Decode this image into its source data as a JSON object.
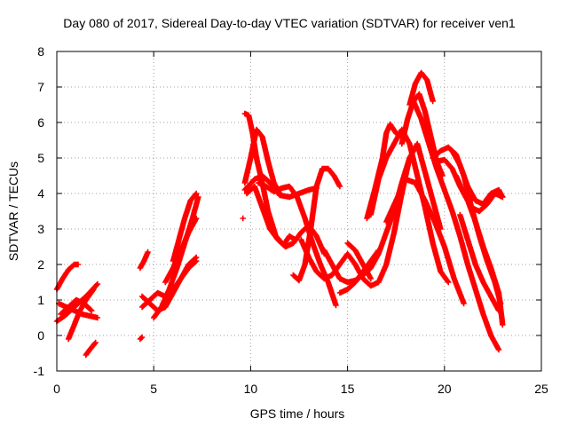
{
  "chart_data": {
    "type": "scatter",
    "title": "Day 080 of 2017, Sidereal Day-to-day VTEC variation (SDTVAR) for receiver ven1",
    "xlabel": "GPS time / hours",
    "ylabel": "SDTVAR / TECUs",
    "xlim": [
      0,
      25
    ],
    "ylim": [
      -1,
      8
    ],
    "x_ticks": [
      "0",
      "5",
      "10",
      "15",
      "20",
      "25"
    ],
    "y_ticks": [
      "-1",
      "0",
      "1",
      "2",
      "3",
      "4",
      "5",
      "6",
      "7",
      "8"
    ],
    "grid": true,
    "marker": "+",
    "series_color": "#ff0000",
    "tracks": [
      {
        "x": [
          0.0,
          0.3,
          0.6,
          0.9,
          1.1
        ],
        "y": [
          1.3,
          1.6,
          1.85,
          2.0,
          2.0
        ]
      },
      {
        "x": [
          0.0,
          0.4,
          0.8,
          1.2,
          1.6,
          2.1
        ],
        "y": [
          0.4,
          0.55,
          0.75,
          0.95,
          1.15,
          1.45
        ]
      },
      {
        "x": [
          0.1,
          0.5,
          0.9,
          1.3,
          1.7,
          2.1
        ],
        "y": [
          0.9,
          0.8,
          0.7,
          0.6,
          0.55,
          0.5
        ]
      },
      {
        "x": [
          0.6,
          0.9,
          1.2,
          1.5,
          1.9
        ],
        "y": [
          -0.1,
          0.3,
          0.7,
          1.0,
          1.3
        ]
      },
      {
        "x": [
          0.2,
          0.6,
          1.0,
          1.4,
          1.8
        ],
        "y": [
          0.6,
          0.8,
          1.0,
          0.9,
          0.7
        ]
      },
      {
        "x": [
          1.5,
          1.7,
          2.0
        ],
        "y": [
          -0.55,
          -0.4,
          -0.2
        ]
      },
      {
        "x": [
          4.3,
          4.5,
          4.7
        ],
        "y": [
          1.9,
          2.1,
          2.35
        ]
      },
      {
        "x": [
          4.3,
          4.4
        ],
        "y": [
          -0.1,
          -0.05
        ]
      },
      {
        "x": [
          4.4,
          4.8,
          5.2,
          5.6,
          6.0,
          6.4,
          6.8,
          7.2
        ],
        "y": [
          1.1,
          0.9,
          0.7,
          0.8,
          1.2,
          1.6,
          2.0,
          2.2
        ]
      },
      {
        "x": [
          4.4,
          4.8,
          5.2,
          5.6,
          6.0,
          6.4,
          6.8,
          7.2
        ],
        "y": [
          0.8,
          1.0,
          1.2,
          1.1,
          1.3,
          1.6,
          1.9,
          2.1
        ]
      },
      {
        "x": [
          5.0,
          5.4,
          5.8,
          6.2,
          6.6,
          7.0,
          7.3
        ],
        "y": [
          0.5,
          0.8,
          1.3,
          1.9,
          2.6,
          3.3,
          3.9
        ]
      },
      {
        "x": [
          6.0,
          6.3,
          6.6,
          6.9,
          7.2
        ],
        "y": [
          2.1,
          2.7,
          3.3,
          3.8,
          4.0
        ]
      },
      {
        "x": [
          5.6,
          6.0,
          6.4,
          6.8,
          7.2
        ],
        "y": [
          1.5,
          1.9,
          2.4,
          2.9,
          3.3
        ]
      },
      {
        "x": [
          9.6
        ],
        "y": [
          3.3
        ]
      },
      {
        "x": [
          9.7,
          9.9,
          10.1,
          10.3,
          10.6,
          10.9,
          11.3,
          11.7,
          12.0,
          12.3
        ],
        "y": [
          6.25,
          6.2,
          5.7,
          5.0,
          4.3,
          3.5,
          2.8,
          2.55,
          2.8,
          2.7
        ]
      },
      {
        "x": [
          9.7,
          10.0,
          10.3,
          10.6,
          10.9,
          11.2,
          11.5
        ],
        "y": [
          4.3,
          5.0,
          5.8,
          5.6,
          4.9,
          4.3,
          4.0
        ]
      },
      {
        "x": [
          9.7,
          10.2,
          10.6,
          11.0,
          11.5,
          12.0,
          12.5,
          13.0,
          13.4
        ],
        "y": [
          4.1,
          4.4,
          4.5,
          4.3,
          3.95,
          3.9,
          4.0,
          4.1,
          4.15
        ]
      },
      {
        "x": [
          9.8,
          10.2,
          10.6,
          11.0,
          11.4,
          11.8,
          12.2,
          12.6,
          13.0,
          13.4,
          13.8
        ],
        "y": [
          4.0,
          4.2,
          3.6,
          3.0,
          2.7,
          2.5,
          2.6,
          2.9,
          3.1,
          2.8,
          2.3
        ]
      },
      {
        "x": [
          10.4,
          10.8,
          11.2,
          11.6,
          12.0,
          12.4,
          12.8,
          13.2,
          13.6,
          14.0,
          14.4
        ],
        "y": [
          4.3,
          4.2,
          4.05,
          4.15,
          4.2,
          3.9,
          3.3,
          2.6,
          2.0,
          1.5,
          0.85
        ]
      },
      {
        "x": [
          12.2,
          12.5,
          12.8,
          13.1,
          13.4,
          13.7,
          14.0,
          14.3,
          14.6
        ],
        "y": [
          1.7,
          1.55,
          2.0,
          3.0,
          4.2,
          4.7,
          4.7,
          4.5,
          4.2
        ]
      },
      {
        "x": [
          12.6,
          13.0,
          13.4,
          13.8,
          14.2,
          14.6,
          15.0,
          15.4,
          15.8,
          16.2,
          16.6,
          17.0,
          17.4,
          17.8,
          18.2
        ],
        "y": [
          2.7,
          2.2,
          1.8,
          1.6,
          1.7,
          2.0,
          2.3,
          2.0,
          1.6,
          1.4,
          1.5,
          2.0,
          2.9,
          4.0,
          5.0
        ]
      },
      {
        "x": [
          13.8,
          14.2,
          14.6,
          15.0,
          15.4,
          15.8,
          16.2,
          16.6,
          17.0,
          17.4
        ],
        "y": [
          2.4,
          2.0,
          1.6,
          1.5,
          1.55,
          1.7,
          1.9,
          2.3,
          2.9,
          3.5
        ]
      },
      {
        "x": [
          14.6,
          15.0,
          15.4,
          15.8,
          16.2,
          16.6
        ],
        "y": [
          1.2,
          1.3,
          1.5,
          1.8,
          2.1,
          2.4
        ]
      },
      {
        "x": [
          15.0,
          15.4,
          15.8,
          16.2
        ],
        "y": [
          2.6,
          2.4,
          2.0,
          1.6
        ]
      },
      {
        "x": [
          16.0,
          16.4,
          16.8,
          17.0,
          17.2,
          17.5,
          17.8
        ],
        "y": [
          3.3,
          4.1,
          5.0,
          5.7,
          5.95,
          5.7,
          5.6
        ]
      },
      {
        "x": [
          16.2,
          16.6,
          17.0,
          17.4,
          17.8,
          18.2,
          18.6,
          19.0,
          19.4,
          19.8,
          20.2
        ],
        "y": [
          3.4,
          4.4,
          5.0,
          5.4,
          5.8,
          5.4,
          4.5,
          3.6,
          2.6,
          1.8,
          1.5
        ]
      },
      {
        "x": [
          17.4,
          17.8,
          18.2,
          18.6,
          19.0,
          19.4,
          19.8
        ],
        "y": [
          3.5,
          4.3,
          5.0,
          5.4,
          4.6,
          3.8,
          3.0
        ]
      },
      {
        "x": [
          17.0,
          17.5,
          18.0,
          18.5,
          19.0,
          19.5,
          20.0,
          20.5,
          21.0
        ],
        "y": [
          3.2,
          3.8,
          4.4,
          4.3,
          3.8,
          3.2,
          2.5,
          1.6,
          0.9
        ]
      },
      {
        "x": [
          17.8,
          18.1,
          18.4,
          18.7,
          19.0,
          19.3,
          19.6,
          19.9
        ],
        "y": [
          5.4,
          6.1,
          6.6,
          6.8,
          6.3,
          5.6,
          4.9,
          4.5
        ]
      },
      {
        "x": [
          18.2,
          18.5,
          18.8,
          19.1,
          19.4
        ],
        "y": [
          6.5,
          7.1,
          7.4,
          7.2,
          6.6
        ]
      },
      {
        "x": [
          18.4,
          18.8,
          19.2,
          19.6,
          20.0,
          20.4,
          20.8,
          21.2,
          21.6,
          22.0,
          22.4,
          22.8
        ],
        "y": [
          6.6,
          6.1,
          5.4,
          4.7,
          4.1,
          3.5,
          2.8,
          2.0,
          1.3,
          0.6,
          0.0,
          -0.4
        ]
      },
      {
        "x": [
          19.4,
          19.8,
          20.2,
          20.6,
          21.0,
          21.4,
          21.8,
          22.2,
          22.6,
          22.9
        ],
        "y": [
          5.0,
          5.2,
          5.3,
          5.1,
          4.5,
          3.6,
          2.8,
          2.1,
          1.5,
          0.9
        ]
      },
      {
        "x": [
          19.6,
          20.0,
          20.4,
          20.8,
          21.2,
          21.6,
          22.0,
          22.4,
          22.8,
          23.0
        ],
        "y": [
          4.9,
          4.95,
          4.7,
          4.2,
          3.8,
          3.2,
          2.5,
          1.9,
          1.2,
          0.3
        ]
      },
      {
        "x": [
          20.4,
          20.8,
          21.2,
          21.6,
          22.0,
          22.4,
          22.8,
          23.0
        ],
        "y": [
          5.2,
          4.8,
          4.2,
          3.8,
          3.7,
          4.0,
          4.1,
          3.9
        ]
      },
      {
        "x": [
          20.6,
          21.0,
          21.4,
          21.8,
          22.2,
          22.6,
          23.0
        ],
        "y": [
          4.5,
          4.0,
          3.6,
          3.5,
          3.7,
          4.0,
          3.9
        ]
      },
      {
        "x": [
          20.8,
          21.2,
          21.6,
          22.0,
          22.4,
          22.8
        ],
        "y": [
          3.4,
          2.7,
          2.0,
          1.5,
          1.1,
          0.7
        ]
      }
    ]
  }
}
